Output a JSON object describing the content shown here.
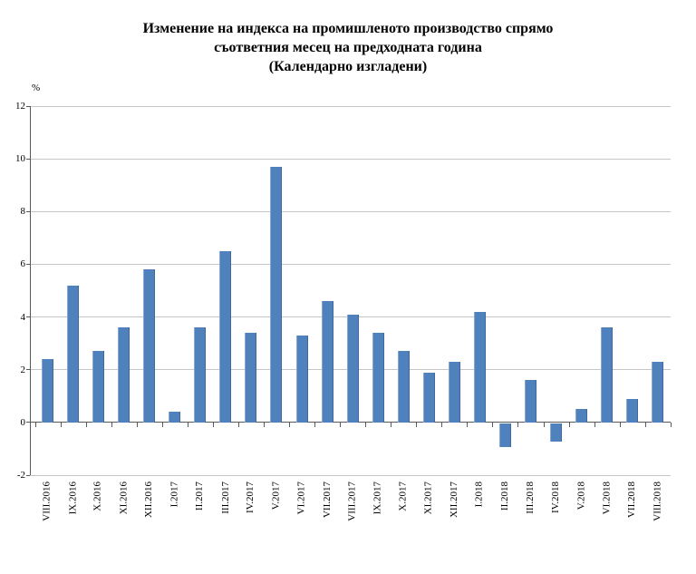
{
  "chart_data": {
    "type": "bar",
    "title_lines": [
      "Изменение на индекса на промишленото производство спрямо",
      "съответния месец на предходната година",
      "(Календарно изгладени)"
    ],
    "unit_label": "%",
    "categories": [
      "VIII.2016",
      "IX.2016",
      "X.2016",
      "XI.2016",
      "XII.2016",
      "I.2017",
      "II.2017",
      "III.2017",
      "IV.2017",
      "V.2017",
      "VI.2017",
      "VII.2017",
      "VIII.2017",
      "IX.2017",
      "X.2017",
      "XI.2017",
      "XII.2017",
      "I.2018",
      "II.2018",
      "III.2018",
      "IV.2018",
      "V.2018",
      "VI.2018",
      "VII.2018",
      "VIII.2018"
    ],
    "values": [
      2.4,
      5.2,
      2.7,
      3.6,
      5.8,
      0.4,
      3.6,
      6.5,
      3.4,
      9.7,
      3.3,
      4.6,
      4.1,
      3.4,
      2.7,
      1.9,
      2.3,
      4.2,
      -0.9,
      1.6,
      -0.7,
      0.5,
      3.6,
      0.9,
      2.3
    ],
    "ylim": [
      -2,
      12
    ],
    "yticks": [
      12,
      10,
      8,
      6,
      4,
      2,
      0,
      -2
    ],
    "grid": true,
    "legend": "none",
    "colors": {
      "bar": "#4F81BD",
      "gridline": "#C6C6C6",
      "axis": "#595959",
      "text": "#000000",
      "background": "#FFFFFF"
    }
  }
}
